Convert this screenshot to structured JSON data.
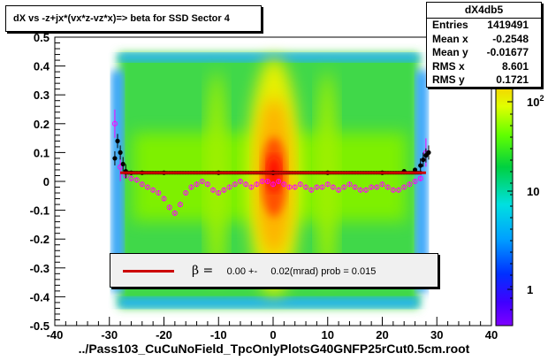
{
  "chart_data": {
    "type": "heatmap",
    "title": "dX vs  -z+jx*(vx*z-vz*x)=> beta  for SSD Sector 4",
    "xlabel": "../Pass103_CuCuNoField_TpcOnlyPlotsG40GNFP25rCut0.5cm.root",
    "ylabel": "",
    "xlim": [
      -40,
      40
    ],
    "ylim": [
      -0.5,
      0.5
    ],
    "x_ticks": [
      "-40",
      "-30",
      "-20",
      "-10",
      "0",
      "10",
      "20",
      "30",
      "40"
    ],
    "y_ticks": [
      "-0.5",
      "-0.4",
      "-0.3",
      "-0.2",
      "-0.1",
      "0",
      "0.1",
      "0.2",
      "0.3",
      "0.4",
      "0.5"
    ],
    "z_scale": "log",
    "z_ticks": [
      "1",
      "10",
      "10²"
    ],
    "grid": false,
    "stats": {
      "name": "dX4db5",
      "rows": [
        {
          "label": "Entries",
          "value": "1419491"
        },
        {
          "label": "Mean x",
          "value": "-0.2548"
        },
        {
          "label": "Mean y",
          "value": "-0.01677"
        },
        {
          "label": "RMS x",
          "value": "8.601"
        },
        {
          "label": "RMS y",
          "value": "0.1721"
        }
      ]
    },
    "fit": {
      "symbol": "β =",
      "text": "0.00 +-     0.02(mrad) prob = 0.015",
      "value": 0.0,
      "color": "#cc0000",
      "x_range": [
        -28,
        28
      ]
    },
    "profile_black": {
      "x": [
        -29,
        -28.5,
        -28,
        -27.5,
        -27,
        -26,
        -24,
        -20,
        -10,
        0,
        10,
        20,
        24,
        26,
        27,
        27.5,
        28,
        28.5
      ],
      "y": [
        0.08,
        0.14,
        0.1,
        0.06,
        0.035,
        0.03,
        0.03,
        0.03,
        0.03,
        0.03,
        0.03,
        0.03,
        0.035,
        0.04,
        0.055,
        0.075,
        0.09,
        0.1
      ]
    },
    "profile_magenta": {
      "x": [
        -29,
        -28,
        -27,
        -26,
        -25,
        -24,
        -23,
        -22,
        -21,
        -20,
        -19,
        -18,
        -17,
        -16,
        -15,
        -14,
        -13,
        -12,
        -11,
        -10,
        -9,
        -8,
        -7,
        -6,
        -5,
        -4,
        -3,
        -2,
        -1,
        0,
        1,
        2,
        3,
        4,
        5,
        6,
        7,
        8,
        9,
        10,
        11,
        12,
        13,
        14,
        15,
        16,
        17,
        18,
        19,
        20,
        21,
        22,
        23,
        24,
        25,
        26,
        27,
        28
      ],
      "y": [
        0.2,
        0.05,
        0.02,
        0.01,
        0.005,
        -0.01,
        -0.02,
        -0.03,
        -0.04,
        -0.06,
        -0.09,
        -0.11,
        -0.08,
        -0.04,
        -0.02,
        -0.01,
        0.0,
        -0.01,
        -0.03,
        -0.04,
        -0.03,
        -0.02,
        -0.01,
        0.0,
        -0.01,
        -0.02,
        -0.01,
        0.0,
        0.0,
        -0.01,
        0.0,
        -0.01,
        -0.02,
        -0.02,
        -0.01,
        -0.02,
        -0.03,
        -0.02,
        -0.02,
        -0.01,
        -0.02,
        -0.03,
        -0.02,
        -0.01,
        -0.02,
        -0.03,
        -0.03,
        -0.02,
        -0.02,
        -0.01,
        -0.02,
        -0.03,
        -0.03,
        -0.02,
        -0.01,
        0.0,
        0.01,
        0.1
      ]
    }
  }
}
